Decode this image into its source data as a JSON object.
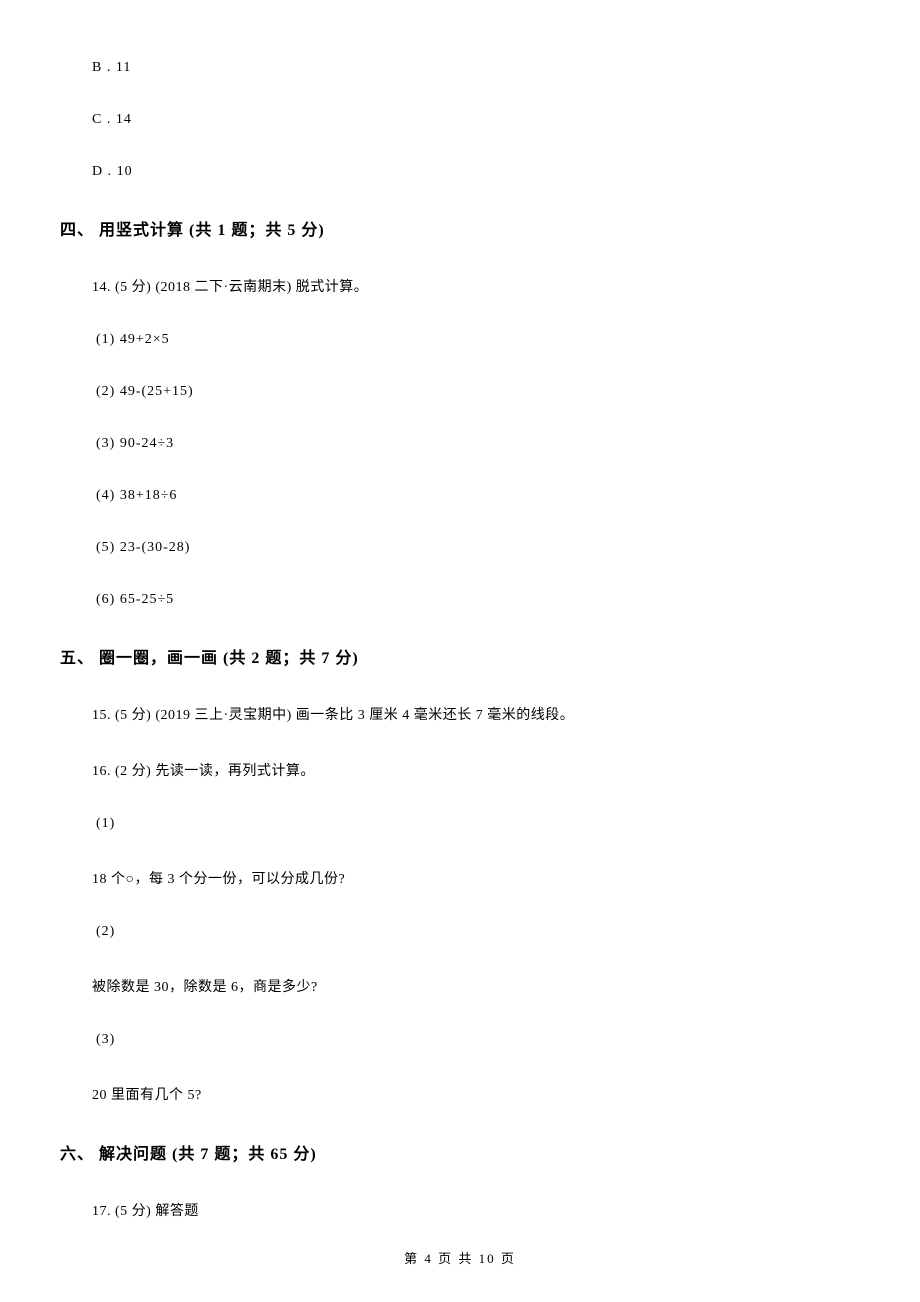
{
  "options": {
    "b": "B . 11",
    "c": "C . 14",
    "d": "D . 10"
  },
  "section4": {
    "heading": "四、 用竖式计算 (共 1 题；共 5 分)",
    "q14": {
      "text": "14.  (5 分)  (2018 二下·云南期末)  脱式计算。",
      "items": {
        "i1": "(1)  49+2×5",
        "i2": "(2)  49-(25+15)",
        "i3": "(3)  90-24÷3",
        "i4": "(4)  38+18÷6",
        "i5": "(5)  23-(30-28)",
        "i6": "(6)  65-25÷5"
      }
    }
  },
  "section5": {
    "heading": "五、 圈一圈，画一画 (共 2 题；共 7 分)",
    "q15": {
      "text": "15.  (5 分)  (2019 三上·灵宝期中)  画一条比 3 厘米 4 毫米还长 7 毫米的线段。"
    },
    "q16": {
      "text": "16.  (2 分)  先读一读，再列式计算。",
      "items": {
        "i1_label": "(1)",
        "i1_text": "18 个○，每 3 个分一份，可以分成几份?",
        "i2_label": "(2)",
        "i2_text": "被除数是 30，除数是 6，商是多少?",
        "i3_label": "(3)",
        "i3_text": "20 里面有几个 5?"
      }
    }
  },
  "section6": {
    "heading": "六、 解决问题 (共 7 题；共 65 分)",
    "q17": {
      "text": "17.  (5 分)  解答题"
    }
  },
  "footer": "第 4 页 共 10 页"
}
